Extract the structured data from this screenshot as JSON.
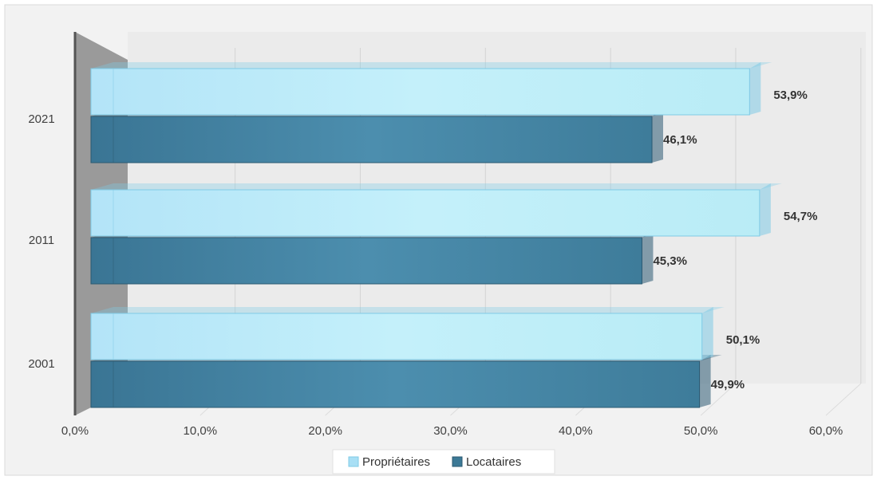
{
  "chart_data": {
    "type": "bar",
    "orientation": "horizontal",
    "style": "3d",
    "categories": [
      "2001",
      "2011",
      "2021"
    ],
    "series": [
      {
        "name": "Propriétaires",
        "values": [
          50.1,
          54.7,
          53.9
        ],
        "labels": [
          "50,1%",
          "54,7%",
          "53,9%"
        ],
        "color": "#a8dff5"
      },
      {
        "name": "Locataires",
        "values": [
          49.9,
          45.3,
          46.1
        ],
        "labels": [
          "49,9%",
          "45,3%",
          "46,1%"
        ],
        "color": "#3c7996"
      }
    ],
    "xlim": [
      0,
      60
    ],
    "xticks": [
      "0,0%",
      "10,0%",
      "20,0%",
      "30,0%",
      "40,0%",
      "50,0%",
      "60,0%"
    ],
    "grid": true,
    "legend_position": "bottom"
  },
  "colors": {
    "background": "#f2f2f2",
    "wall": "#ebebeb",
    "left_wall": "#9a9a9a",
    "proprietaires": "#a8dff5",
    "locataires": "#3c7996"
  }
}
